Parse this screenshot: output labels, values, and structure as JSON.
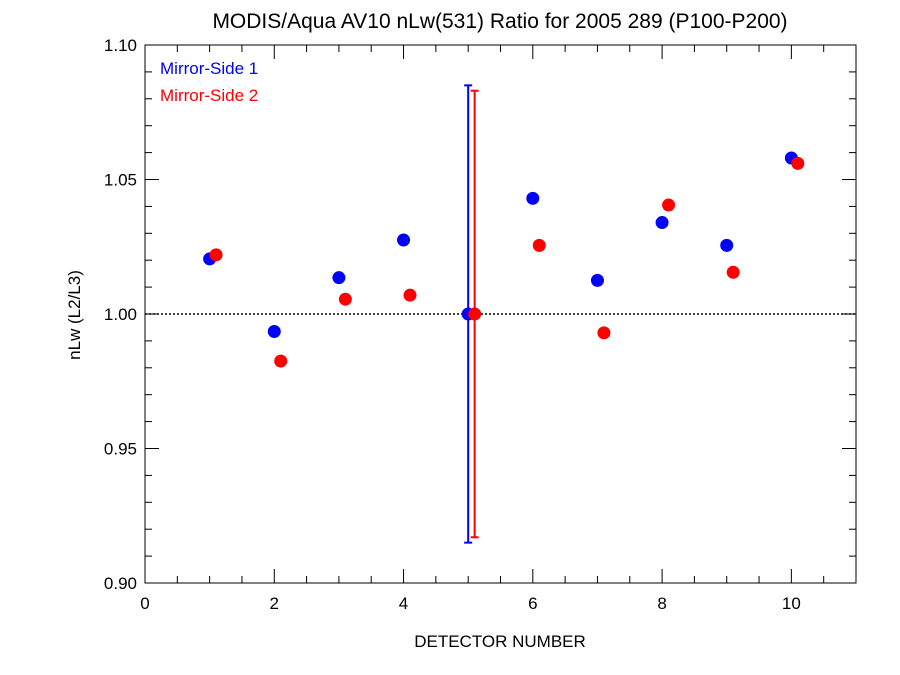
{
  "chart_data": {
    "type": "scatter",
    "title": "MODIS/Aqua AV10 nLw(531) Ratio for 2005 289 (P100-P200)",
    "xlabel": "DETECTOR NUMBER",
    "ylabel": "nLw (L2/L3)",
    "xlim": [
      0,
      11
    ],
    "ylim": [
      0.9,
      1.1
    ],
    "xticks": [
      "0",
      "2",
      "4",
      "6",
      "8",
      "10"
    ],
    "yticks": [
      "0.90",
      "0.95",
      "1.00",
      "1.05",
      "1.10"
    ],
    "reference_line": 1.0,
    "legend_position": "top-left",
    "x_offset_series2": 0.1,
    "series": [
      {
        "name": "Mirror-Side 1",
        "color": "#0000ff",
        "x": [
          1,
          2,
          3,
          4,
          5,
          6,
          7,
          8,
          9,
          10
        ],
        "y": [
          1.0205,
          0.9935,
          1.0135,
          1.0275,
          1.0,
          1.043,
          1.0125,
          1.034,
          1.0255,
          1.058
        ],
        "error_bar": {
          "x": 5,
          "low": 0.915,
          "high": 1.085
        }
      },
      {
        "name": "Mirror-Side 2",
        "color": "#ff0000",
        "x": [
          1,
          2,
          3,
          4,
          5,
          6,
          7,
          8,
          9,
          10
        ],
        "y": [
          1.022,
          0.9825,
          1.0055,
          1.007,
          1.0,
          1.0255,
          0.993,
          1.0405,
          1.0155,
          1.056
        ],
        "error_bar": {
          "x": 5,
          "low": 0.917,
          "high": 1.083
        }
      }
    ]
  }
}
